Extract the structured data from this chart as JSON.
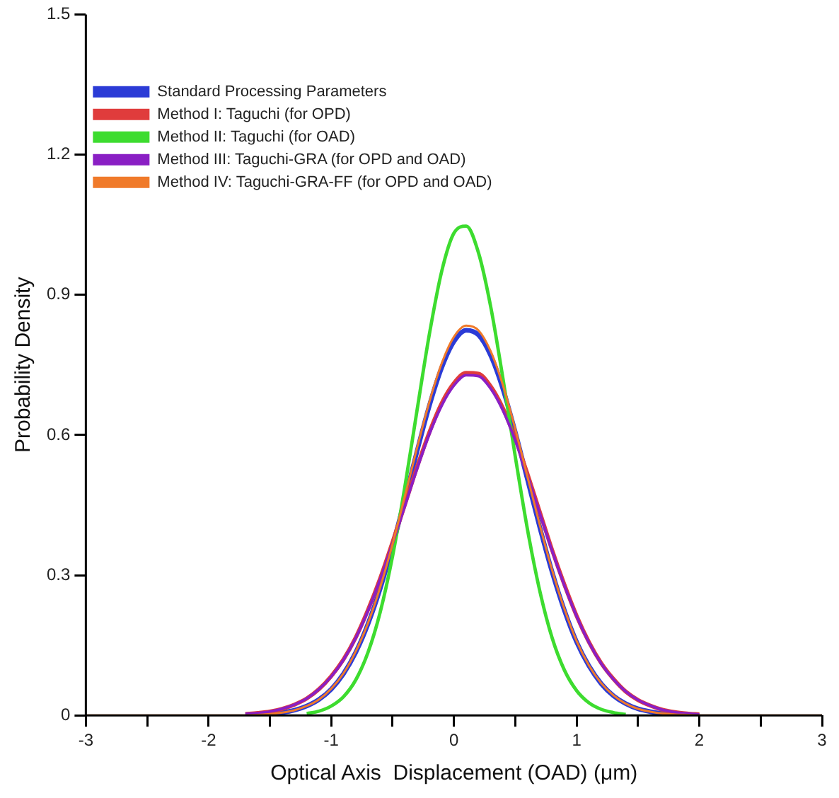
{
  "chart_data": {
    "type": "line",
    "xlabel": "Optical Axis  Displacement (OAD) (μm)",
    "ylabel": "Probability Density",
    "xlim": [
      -3,
      3
    ],
    "xticks": [
      -3,
      {
        "value": -2.5,
        "label": null
      },
      -2,
      {
        "value": -1.5,
        "label": null
      },
      -1,
      {
        "value": -0.5,
        "label": null
      },
      0,
      {
        "value": 0.5,
        "label": null
      },
      1,
      {
        "value": 1.5,
        "label": null
      },
      2,
      {
        "value": 2.5,
        "label": null
      },
      3
    ],
    "ylim": [
      0,
      1.5
    ],
    "yticks": [
      0,
      0.3,
      0.6,
      0.9,
      1.2,
      1.5
    ],
    "grid": false,
    "legend": "top left",
    "marker": "none",
    "line_style": "solid",
    "series": [
      {
        "name": "Standard Processing Parameters",
        "color": "#2b3bd6",
        "x": [
          -1.6,
          -1.5,
          -1.4,
          -1.3,
          -1.2,
          -1.1,
          -1.0,
          -0.9,
          -0.8,
          -0.7,
          -0.6,
          -0.5,
          -0.4,
          -0.3,
          -0.2,
          -0.1,
          0,
          0.1,
          0.2,
          0.3,
          0.4,
          0.5,
          0.6,
          0.7,
          0.8,
          0.9,
          1.0,
          1.1,
          1.2,
          1.3,
          1.4,
          1.5,
          1.6,
          1.7,
          1.8,
          1.9
        ],
        "values": [
          0.001,
          0.003,
          0.006,
          0.011,
          0.02,
          0.034,
          0.056,
          0.089,
          0.135,
          0.196,
          0.272,
          0.363,
          0.463,
          0.566,
          0.663,
          0.744,
          0.8,
          0.824,
          0.814,
          0.77,
          0.698,
          0.606,
          0.504,
          0.402,
          0.307,
          0.225,
          0.157,
          0.106,
          0.068,
          0.042,
          0.025,
          0.014,
          0.008,
          0.004,
          0.002,
          0.001
        ]
      },
      {
        "name": "Method I: Taguchi (for OPD)",
        "color": "#e03c3c",
        "x": [
          -1.7,
          -1.6,
          -1.5,
          -1.4,
          -1.3,
          -1.2,
          -1.1,
          -1.0,
          -0.9,
          -0.8,
          -0.7,
          -0.6,
          -0.5,
          -0.4,
          -0.3,
          -0.2,
          -0.1,
          0,
          0.1,
          0.2,
          0.3,
          0.4,
          0.5,
          0.6,
          0.7,
          0.8,
          0.9,
          1.0,
          1.1,
          1.2,
          1.3,
          1.4,
          1.5,
          1.6,
          1.7,
          1.8,
          1.9,
          2.0
        ],
        "values": [
          0.003,
          0.005,
          0.008,
          0.014,
          0.023,
          0.036,
          0.056,
          0.084,
          0.12,
          0.167,
          0.226,
          0.294,
          0.371,
          0.451,
          0.532,
          0.606,
          0.668,
          0.711,
          0.733,
          0.731,
          0.704,
          0.657,
          0.592,
          0.516,
          0.435,
          0.354,
          0.28,
          0.213,
          0.157,
          0.112,
          0.078,
          0.051,
          0.033,
          0.021,
          0.012,
          0.007,
          0.004,
          0.002
        ]
      },
      {
        "name": "Method II: Taguchi (for OAD)",
        "color": "#3ddc2f",
        "x": [
          -1.2,
          -1.1,
          -1.0,
          -0.9,
          -0.8,
          -0.7,
          -0.6,
          -0.5,
          -0.4,
          -0.3,
          -0.2,
          -0.1,
          0,
          0.1,
          0.2,
          0.3,
          0.4,
          0.5,
          0.6,
          0.7,
          0.8,
          0.9,
          1.0,
          1.1,
          1.2,
          1.3,
          1.4
        ],
        "values": [
          0.004,
          0.009,
          0.02,
          0.04,
          0.076,
          0.135,
          0.222,
          0.341,
          0.489,
          0.654,
          0.816,
          0.95,
          1.032,
          1.047,
          0.99,
          0.874,
          0.72,
          0.554,
          0.397,
          0.266,
          0.166,
          0.097,
          0.053,
          0.027,
          0.013,
          0.006,
          0.002
        ]
      },
      {
        "name": "Method III: Taguchi-GRA (for OPD and OAD)",
        "color": "#8a1fc4",
        "x": [
          -1.7,
          -1.6,
          -1.5,
          -1.4,
          -1.3,
          -1.2,
          -1.1,
          -1.0,
          -0.9,
          -0.8,
          -0.7,
          -0.6,
          -0.5,
          -0.4,
          -0.3,
          -0.2,
          -0.1,
          0,
          0.1,
          0.2,
          0.3,
          0.4,
          0.5,
          0.6,
          0.7,
          0.8,
          0.9,
          1.0,
          1.1,
          1.2,
          1.3,
          1.4,
          1.5,
          1.6,
          1.7,
          1.8,
          1.9,
          2.0
        ],
        "values": [
          0.003,
          0.005,
          0.008,
          0.014,
          0.023,
          0.036,
          0.056,
          0.083,
          0.119,
          0.166,
          0.224,
          0.292,
          0.368,
          0.448,
          0.528,
          0.602,
          0.663,
          0.706,
          0.728,
          0.726,
          0.699,
          0.652,
          0.588,
          0.512,
          0.432,
          0.352,
          0.278,
          0.212,
          0.156,
          0.111,
          0.077,
          0.051,
          0.033,
          0.021,
          0.012,
          0.007,
          0.004,
          0.002
        ]
      },
      {
        "name": "Method IV: Taguchi-GRA-FF (for OPD and OAD)",
        "color": "#f07a2a",
        "x": [
          -3,
          -1.7,
          -1.6,
          -1.5,
          -1.4,
          -1.3,
          -1.2,
          -1.1,
          -1.0,
          -0.9,
          -0.8,
          -0.7,
          -0.6,
          -0.5,
          -0.4,
          -0.3,
          -0.2,
          -0.1,
          0,
          0.1,
          0.2,
          0.3,
          0.4,
          0.5,
          0.6,
          0.7,
          0.8,
          0.9,
          1.0,
          1.1,
          1.2,
          1.3,
          1.4,
          1.5,
          1.6,
          1.7,
          1.8,
          1.9,
          2.0,
          3
        ],
        "values": [
          0,
          0,
          0.001,
          0.003,
          0.006,
          0.011,
          0.02,
          0.034,
          0.057,
          0.09,
          0.137,
          0.198,
          0.275,
          0.367,
          0.469,
          0.573,
          0.671,
          0.753,
          0.81,
          0.834,
          0.824,
          0.779,
          0.706,
          0.613,
          0.51,
          0.407,
          0.311,
          0.228,
          0.159,
          0.107,
          0.069,
          0.043,
          0.025,
          0.014,
          0.008,
          0.004,
          0.002,
          0.001,
          0,
          0
        ]
      }
    ]
  }
}
